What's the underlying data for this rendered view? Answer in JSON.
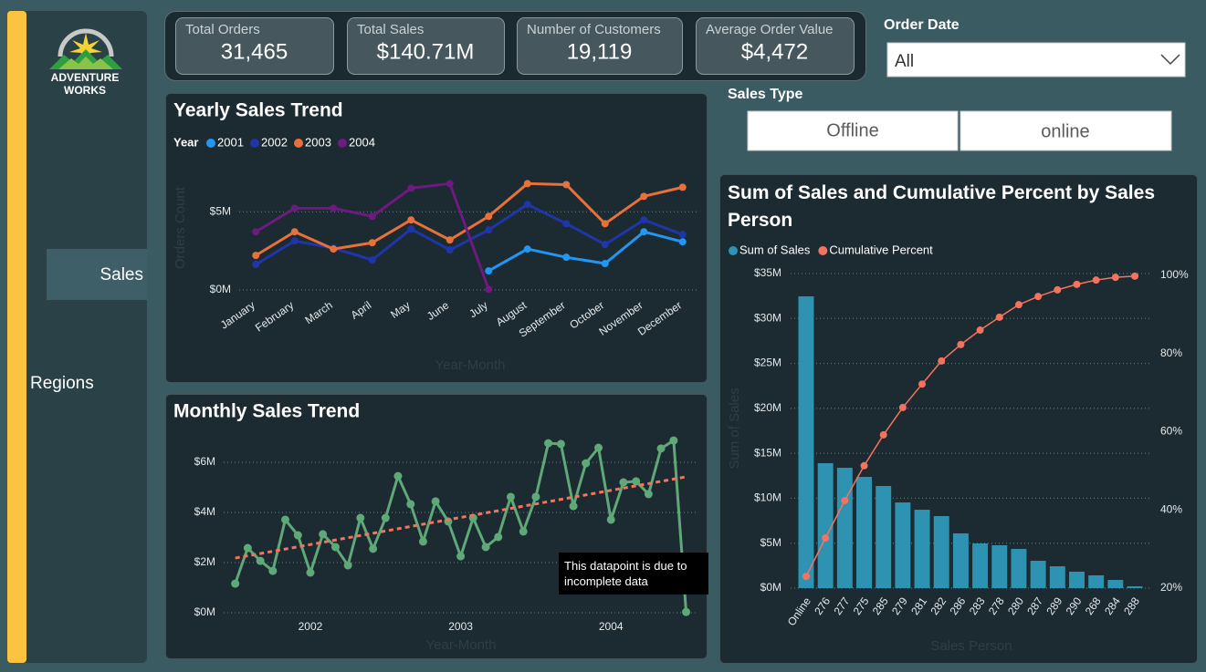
{
  "nav": {
    "logo": [
      "ADVENTURE",
      "WORKS"
    ],
    "items": [
      "Sales",
      "Regions"
    ]
  },
  "kpis": [
    {
      "label": "Total Orders",
      "value": "31,465"
    },
    {
      "label": "Total Sales",
      "value": "$140.71M"
    },
    {
      "label": "Number of Customers",
      "value": "19,119"
    },
    {
      "label": "Average Order Value",
      "value": "$4,472"
    }
  ],
  "filters": {
    "order_date": {
      "label": "Order Date",
      "value": "All"
    },
    "sales_type": {
      "label": "Sales Type",
      "options": [
        "Offline",
        "online"
      ]
    }
  },
  "chart_data": [
    {
      "type": "line",
      "title": "Yearly Sales Trend",
      "legend_title": "Year",
      "y_label": "Orders Count",
      "x_label": "Year-Month",
      "categories": [
        "January",
        "February",
        "March",
        "April",
        "May",
        "June",
        "July",
        "August",
        "September",
        "October",
        "November",
        "December"
      ],
      "series": [
        {
          "name": "2001",
          "color": "#2196f3",
          "values": [
            null,
            null,
            null,
            null,
            null,
            null,
            1220000,
            2620000,
            2090000,
            1690000,
            3720000,
            3080000
          ]
        },
        {
          "name": "2002",
          "color": "#1f35a8",
          "values": [
            1630000,
            3140000,
            2670000,
            1920000,
            3900000,
            2560000,
            3840000,
            5470000,
            4240000,
            2910000,
            4480000,
            3550000
          ]
        },
        {
          "name": "2003",
          "color": "#e8703a",
          "values": [
            2210000,
            3720000,
            2620000,
            3020000,
            4480000,
            3200000,
            4710000,
            6800000,
            6740000,
            4240000,
            5990000,
            6570000
          ]
        },
        {
          "name": "2004",
          "color": "#6e1a80",
          "values": [
            3720000,
            5230000,
            5230000,
            4710000,
            6510000,
            6800000,
            50000,
            null,
            null,
            null,
            null,
            null
          ]
        }
      ],
      "ylim": [
        0,
        7000000
      ],
      "yticks": [
        {
          "value": 0,
          "label": "$0M"
        },
        {
          "value": 5000000,
          "label": "$5M"
        }
      ],
      "grid": true
    },
    {
      "type": "line",
      "title": "Monthly Sales Trend",
      "x_label": "Year-Month",
      "x": [
        2001.5,
        2001.583,
        2001.667,
        2001.75,
        2001.833,
        2001.917,
        2002,
        2002.083,
        2002.167,
        2002.25,
        2002.333,
        2002.417,
        2002.5,
        2002.583,
        2002.667,
        2002.75,
        2002.833,
        2002.917,
        2003,
        2003.083,
        2003.167,
        2003.25,
        2003.333,
        2003.417,
        2003.5,
        2003.583,
        2003.667,
        2003.75,
        2003.833,
        2003.917,
        2004,
        2004.083,
        2004.167,
        2004.25,
        2004.333,
        2004.417,
        2004.5
      ],
      "series": [
        {
          "color": "#5fa878",
          "values": [
            1160000,
            2580000,
            2070000,
            1670000,
            3710000,
            3090000,
            1600000,
            3130000,
            2620000,
            1890000,
            3780000,
            2550000,
            3780000,
            5450000,
            4330000,
            2840000,
            4440000,
            3640000,
            2250000,
            3780000,
            2620000,
            3020000,
            4620000,
            3240000,
            4620000,
            6760000,
            6730000,
            4250000,
            5960000,
            6580000,
            3710000,
            5200000,
            5240000,
            4730000,
            6550000,
            6870000,
            30000
          ]
        }
      ],
      "trendline": {
        "color": "#f4735e",
        "x": [
          2001.5,
          2004.5
        ],
        "values": [
          2180000,
          5420000
        ]
      },
      "annotation": "This datapoint is due to incomplete data",
      "xlim": [
        2001.4,
        2004.6
      ],
      "xticks": [
        2002,
        2003,
        2004
      ],
      "ylim": [
        0,
        7000000
      ],
      "yticks": [
        {
          "value": 0,
          "label": "$0M"
        },
        {
          "value": 2000000,
          "label": "$2M"
        },
        {
          "value": 4000000,
          "label": "$4M"
        },
        {
          "value": 6000000,
          "label": "$6M"
        }
      ],
      "grid": true
    },
    {
      "type": "bar_line",
      "title": "Sum of Sales and Cumulative Percent by Sales Person",
      "y_label": "Sum of Sales",
      "x_label": "Sales Person",
      "categories": [
        "Online",
        "276",
        "277",
        "275",
        "285",
        "279",
        "281",
        "282",
        "286",
        "283",
        "278",
        "280",
        "287",
        "289",
        "290",
        "268",
        "284",
        "288"
      ],
      "series": [
        {
          "name": "Sum of Sales",
          "type": "bar",
          "color": "#2e93b3",
          "values": [
            32460000,
            13900000,
            13390000,
            12370000,
            11360000,
            9530000,
            8720000,
            8010000,
            6090000,
            4970000,
            4770000,
            4360000,
            3040000,
            2430000,
            1830000,
            1420000,
            910000,
            200000
          ]
        },
        {
          "name": "Cumulative Percent",
          "type": "line",
          "axis": "y2",
          "color": "#f4735e",
          "values": [
            23,
            32.8,
            42.4,
            51.3,
            59.2,
            66.2,
            72.2,
            78.1,
            82.3,
            86,
            89.3,
            92.5,
            94.6,
            96.3,
            97.7,
            98.8,
            99.5,
            99.8
          ]
        }
      ],
      "ylim": [
        0,
        35000000
      ],
      "yticks": [
        {
          "value": 0,
          "label": "$0M"
        },
        {
          "value": 5000000,
          "label": "$5M"
        },
        {
          "value": 10000000,
          "label": "$10M"
        },
        {
          "value": 15000000,
          "label": "$15M"
        },
        {
          "value": 20000000,
          "label": "$20M"
        },
        {
          "value": 25000000,
          "label": "$25M"
        },
        {
          "value": 30000000,
          "label": "$30M"
        },
        {
          "value": 35000000,
          "label": "$35M"
        }
      ],
      "y2lim": [
        20,
        100
      ],
      "y2ticks": [
        {
          "value": 20,
          "label": "20%"
        },
        {
          "value": 40,
          "label": "40%"
        },
        {
          "value": 60,
          "label": "60%"
        },
        {
          "value": 80,
          "label": "80%"
        },
        {
          "value": 100,
          "label": "100%"
        }
      ],
      "grid": true
    }
  ]
}
